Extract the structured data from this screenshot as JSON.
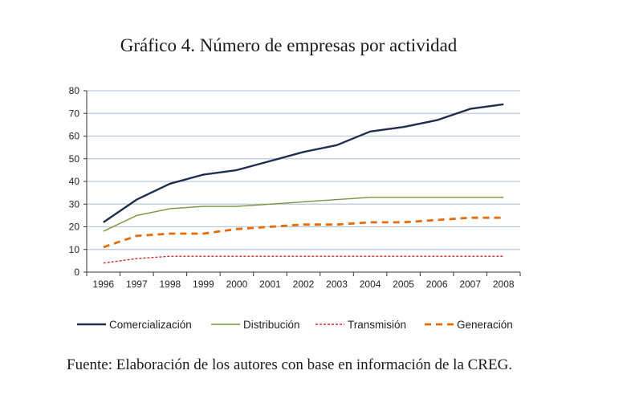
{
  "title": "Gráfico 4. Número de empresas por actividad",
  "source": "Fuente: Elaboración de los autores con base en información de la CREG.",
  "chart_data": {
    "type": "line",
    "title": "Gráfico 4. Número de empresas por actividad",
    "xlabel": "",
    "ylabel": "",
    "ylim": [
      0,
      80
    ],
    "yticks": [
      0,
      10,
      20,
      30,
      40,
      50,
      60,
      70,
      80
    ],
    "grid": true,
    "legend_position": "bottom",
    "x": [
      "1996",
      "1997",
      "1998",
      "1999",
      "2000",
      "2001",
      "2002",
      "2003",
      "2004",
      "2005",
      "2006",
      "2007",
      "2008"
    ],
    "series": [
      {
        "name": "Comercialización",
        "color": "#1f2d4e",
        "style": "solid",
        "values": [
          22,
          32,
          39,
          43,
          45,
          49,
          53,
          56,
          62,
          64,
          67,
          72,
          74
        ]
      },
      {
        "name": "Distribución",
        "color": "#77933c",
        "style": "solid",
        "values": [
          18,
          25,
          28,
          29,
          29,
          30,
          31,
          32,
          33,
          33,
          33,
          33,
          33
        ]
      },
      {
        "name": "Transmisión",
        "color": "#d7282f",
        "style": "dotted",
        "values": [
          4,
          6,
          7,
          7,
          7,
          7,
          7,
          7,
          7,
          7,
          7,
          7,
          7
        ]
      },
      {
        "name": "Generación",
        "color": "#e46c0a",
        "style": "dashed",
        "values": [
          11,
          16,
          17,
          17,
          19,
          20,
          21,
          21,
          22,
          22,
          23,
          24,
          24
        ]
      }
    ]
  }
}
